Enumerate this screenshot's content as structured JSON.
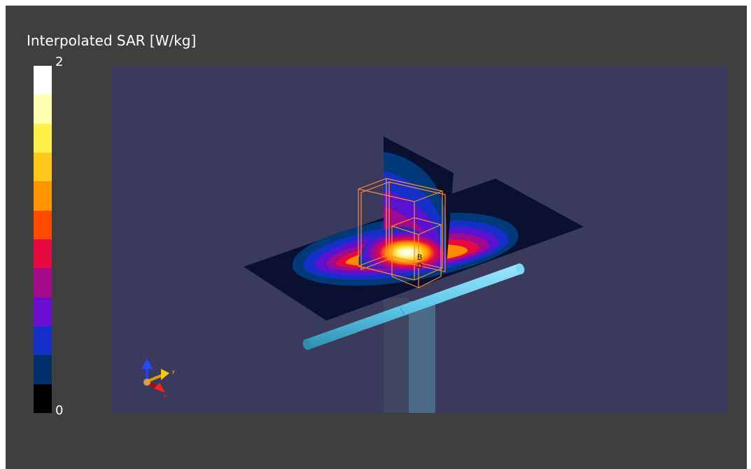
{
  "colorbar": {
    "title": "Interpolated SAR [W/kg]",
    "max_label": "2",
    "min_label": "0",
    "colors_top_to_bottom": [
      "#ffffff",
      "#ffffb0",
      "#fff04a",
      "#ffc81a",
      "#ff9500",
      "#ff4a00",
      "#e5093f",
      "#a50a8c",
      "#6a0fd0",
      "#1530c8",
      "#00306a",
      "#000000"
    ]
  },
  "viewport": {
    "background": "#3a3b5c",
    "axes_triad": {
      "x_label": "x",
      "y_label": "y",
      "z_label": "z"
    },
    "probe_label": "B\nD"
  },
  "colors": {
    "frame": "#3f3f3f",
    "dipole": "#5ec8e8",
    "support": "#4a6a86",
    "volume_box": "#ff8a30"
  }
}
